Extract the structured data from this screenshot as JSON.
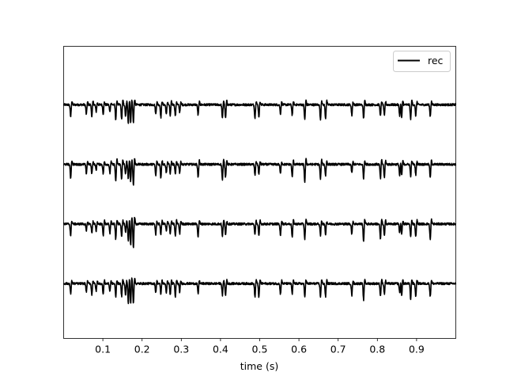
{
  "chart_data": {
    "type": "line",
    "title": "",
    "xlabel": "time (s)",
    "ylabel": "",
    "xlim": [
      0.0,
      1.0
    ],
    "xticks": [
      0.1,
      0.2,
      0.3,
      0.4,
      0.5,
      0.6,
      0.7,
      0.8,
      0.9
    ],
    "xtick_labels": [
      "0.1",
      "0.2",
      "0.3",
      "0.4",
      "0.5",
      "0.6",
      "0.7",
      "0.8",
      "0.9"
    ],
    "y_axis_ticks_shown": false,
    "grid": false,
    "legend": {
      "entries": [
        "rec"
      ],
      "placement": "top-right"
    },
    "series": [
      {
        "name": "rec",
        "color": "#000000",
        "traces": 4,
        "noise_amplitude": 0.03,
        "spike_times": [
          0.018,
          0.058,
          0.072,
          0.083,
          0.101,
          0.118,
          0.133,
          0.148,
          0.158,
          0.165,
          0.171,
          0.178,
          0.235,
          0.248,
          0.262,
          0.272,
          0.285,
          0.296,
          0.343,
          0.405,
          0.413,
          0.488,
          0.498,
          0.553,
          0.583,
          0.615,
          0.655,
          0.668,
          0.735,
          0.765,
          0.808,
          0.818,
          0.857,
          0.862,
          0.885,
          0.898,
          0.935
        ],
        "spike_amplitudes": [
          -0.35,
          -0.25,
          -0.3,
          -0.2,
          -0.3,
          -0.25,
          -0.45,
          -0.4,
          -0.3,
          -0.5,
          -0.55,
          -0.6,
          -0.3,
          -0.35,
          -0.25,
          -0.3,
          -0.35,
          -0.25,
          -0.35,
          -0.4,
          -0.35,
          -0.35,
          -0.35,
          -0.3,
          -0.35,
          -0.45,
          -0.4,
          -0.35,
          -0.3,
          -0.45,
          -0.4,
          -0.35,
          -0.3,
          -0.35,
          -0.4,
          -0.35,
          -0.4
        ]
      }
    ]
  }
}
